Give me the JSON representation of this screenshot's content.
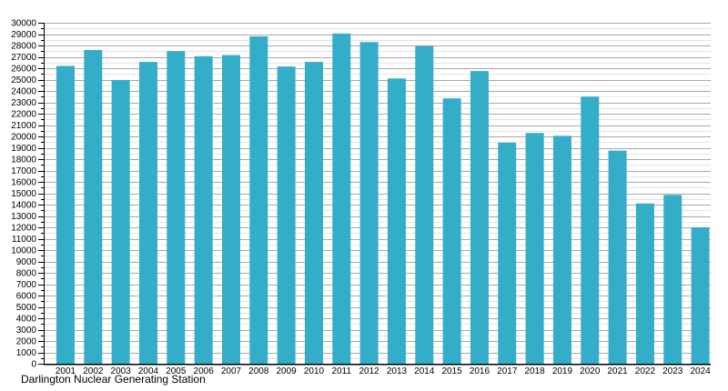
{
  "chart_data": {
    "type": "bar",
    "title": "",
    "caption": "Darlington Nuclear Generating Station",
    "categories": [
      "2001",
      "2002",
      "2003",
      "2004",
      "2005",
      "2006",
      "2007",
      "2008",
      "2009",
      "2010",
      "2011",
      "2012",
      "2013",
      "2014",
      "2015",
      "2016",
      "2017",
      "2018",
      "2019",
      "2020",
      "2021",
      "2022",
      "2023",
      "2024"
    ],
    "values": [
      26200,
      27600,
      24950,
      26550,
      27500,
      27050,
      27150,
      28800,
      26150,
      26550,
      29050,
      28300,
      25100,
      27950,
      23350,
      25750,
      19450,
      20300,
      20050,
      23500,
      18750,
      14100,
      14850,
      12000
    ],
    "xlabel": "",
    "ylabel": "",
    "ylim": [
      0,
      30000
    ],
    "y_tick_step": 1000,
    "y_minor_step": 500,
    "grid": "horizontal",
    "legend": "none",
    "colors": {
      "bar": "#34adc9",
      "major_grid": "#a8a8a8",
      "minor_grid": "#e4e4e4",
      "axis": "#000000",
      "text": "#000000",
      "background": "#ffffff"
    }
  }
}
